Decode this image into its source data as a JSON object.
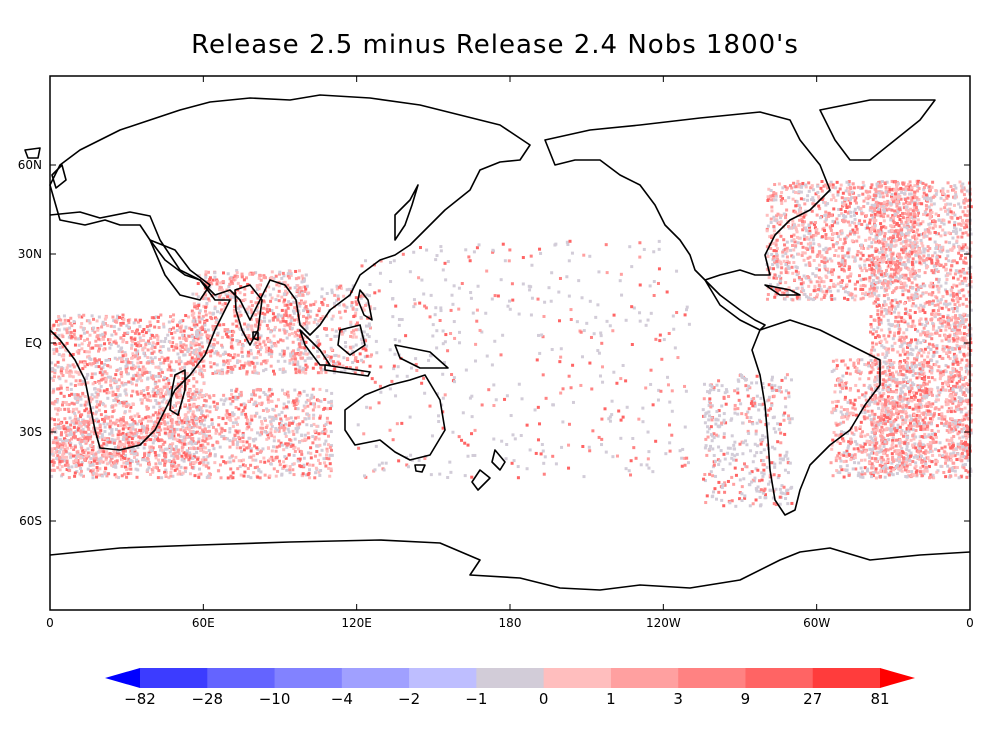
{
  "title": "Release 2.5 minus Release 2.4  Nobs 1800's",
  "map": {
    "projection": "cylindrical equidistant, 0 to 360 longitude",
    "lat_range": [
      -90,
      90
    ],
    "lon_range": [
      0,
      360
    ],
    "lat_ticks": [
      {
        "lat": 60,
        "label": "60N"
      },
      {
        "lat": 30,
        "label": "30N"
      },
      {
        "lat": 0,
        "label": "EQ"
      },
      {
        "lat": -30,
        "label": "30S"
      },
      {
        "lat": -60,
        "label": "60S"
      }
    ],
    "lon_ticks": [
      {
        "lon": 0,
        "label": "0"
      },
      {
        "lon": 60,
        "label": "60E"
      },
      {
        "lon": 120,
        "label": "120E"
      },
      {
        "lon": 180,
        "label": "180"
      },
      {
        "lon": 240,
        "label": "120W"
      },
      {
        "lon": 300,
        "label": "60W"
      },
      {
        "lon": 360,
        "label": "0"
      }
    ],
    "coastline_color": "#000000",
    "dominant_field": "positive differences (red) along shipping lanes; Atlantic, Indian Ocean, SE Atlantic/Cape region strongest",
    "colorbar": {
      "colors": [
        "#0000ff",
        "#3c3cff",
        "#6464ff",
        "#8282ff",
        "#a0a0ff",
        "#bebeff",
        "#d2ccd8",
        "#ffbebe",
        "#ffa0a0",
        "#ff8282",
        "#ff6464",
        "#ff3c3c",
        "#ff0000"
      ],
      "labels": [
        "-82",
        "-28",
        "-10",
        "-4",
        "-2",
        "-1",
        "0",
        "1",
        "3",
        "9",
        "27",
        "81"
      ]
    }
  }
}
